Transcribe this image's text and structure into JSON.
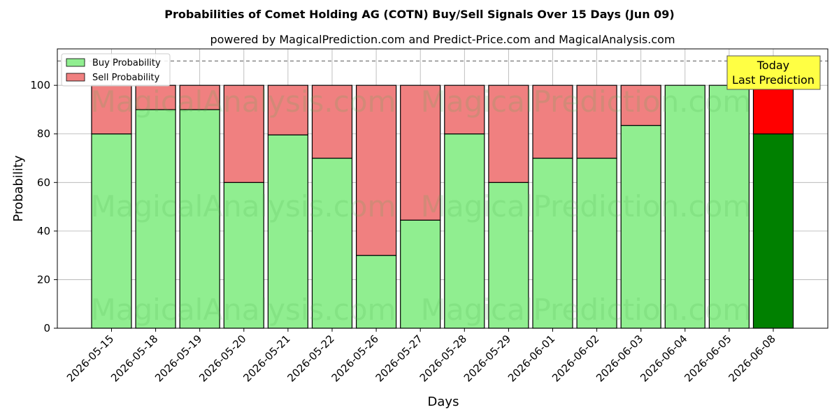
{
  "chart_data": {
    "type": "bar",
    "stacked": true,
    "title": "Probabilities of Comet Holding AG (COTN) Buy/Sell Signals Over 15 Days (Jun 09)",
    "subtitle": "powered by MagicalPrediction.com and Predict-Price.com and MagicalAnalysis.com",
    "xlabel": "Days",
    "ylabel": "Probability",
    "ylim": [
      0,
      115
    ],
    "yticks": [
      0,
      20,
      40,
      60,
      80,
      100
    ],
    "grid": true,
    "legend_position": "top-left",
    "reference_line": 110,
    "categories": [
      "2026-05-15",
      "2026-05-18",
      "2026-05-19",
      "2026-05-20",
      "2026-05-21",
      "2026-05-22",
      "2026-05-26",
      "2026-05-27",
      "2026-05-28",
      "2026-05-29",
      "2026-06-01",
      "2026-06-02",
      "2026-06-03",
      "2026-06-04",
      "2026-06-05",
      "2026-06-08"
    ],
    "series": [
      {
        "name": "Buy Probability",
        "color": "#90ee90",
        "values": [
          80,
          90,
          90,
          60,
          79.6,
          70,
          30,
          44.5,
          80,
          60,
          70,
          70,
          83.5,
          100,
          100,
          80
        ]
      },
      {
        "name": "Sell Probability",
        "color": "#f08080",
        "values": [
          20,
          10,
          10,
          40,
          20.4,
          30,
          70,
          55.5,
          20,
          40,
          30,
          30,
          16.5,
          0,
          0,
          20
        ]
      }
    ],
    "highlight": {
      "index": 15,
      "buy_color": "#008000",
      "sell_color": "#ff0000"
    },
    "annotation": {
      "lines": [
        "Today",
        "Last Prediction"
      ],
      "bg": "#ffff44"
    },
    "watermarks": [
      "MagicalAnalysis.com",
      "MagicalPrediction.com"
    ]
  }
}
